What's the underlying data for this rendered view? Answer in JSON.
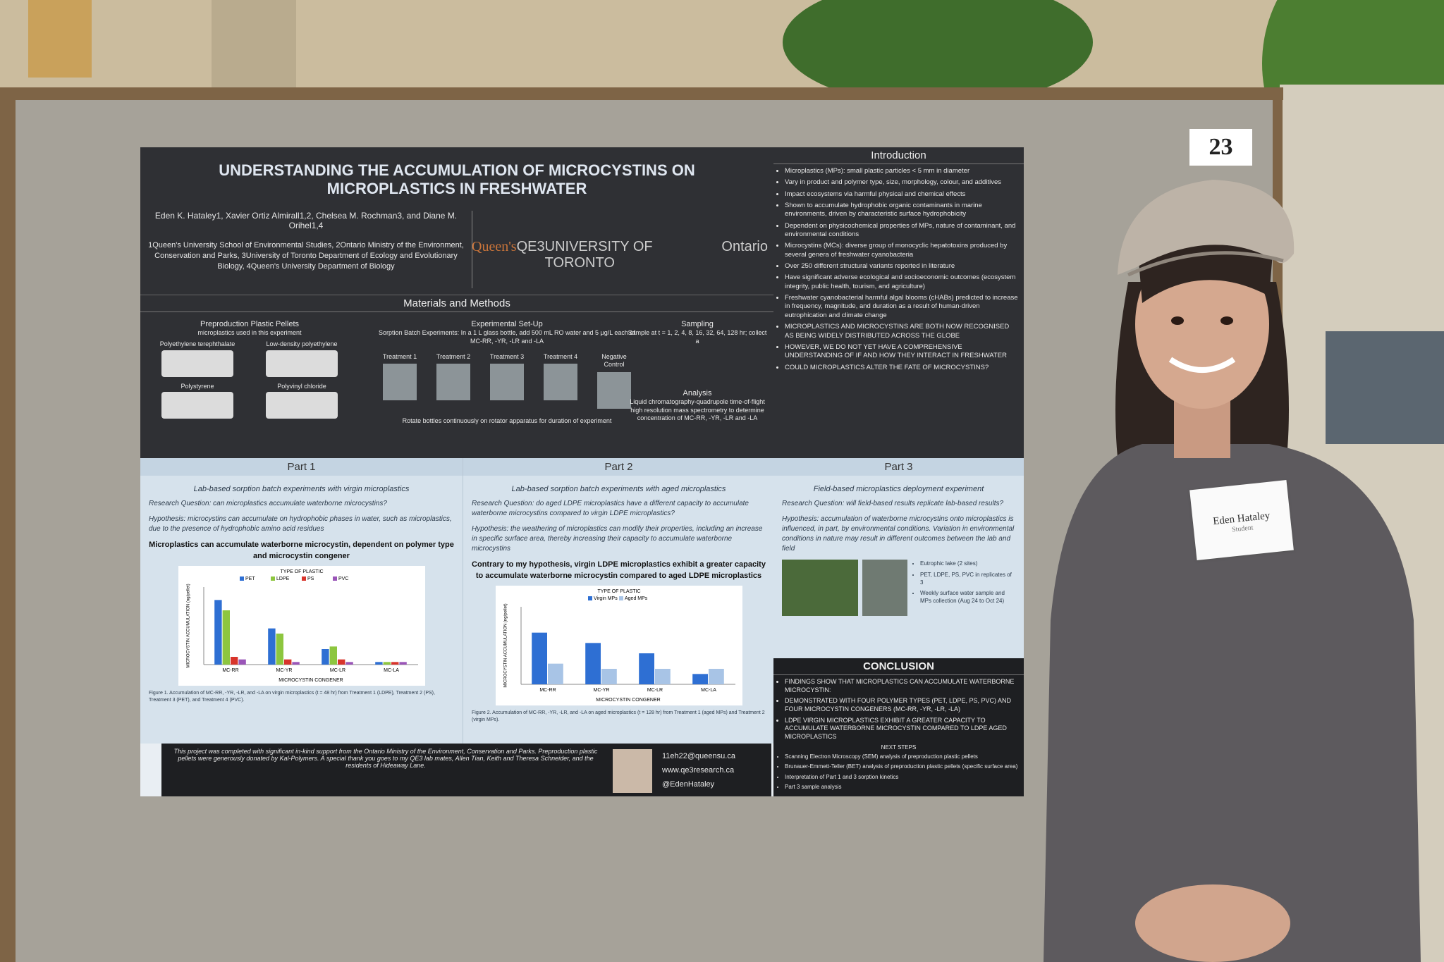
{
  "sign_number": "23",
  "poster": {
    "title_line1": "UNDERSTANDING THE ACCUMULATION OF MICROCYSTINS ON",
    "title_line2": "MICROPLASTICS IN FRESHWATER",
    "authors": "Eden K. Hataley1, Xavier Ortiz Almirall1,2, Chelsea M. Rochman3, and Diane M. Orihel1,4",
    "affiliations": "1Queen's University School of Environmental Studies, 2Ontario Ministry of the Environment, Conservation and Parks, 3University of Toronto Department of Ecology and Evolutionary Biology, 4Queen's University Department of Biology",
    "logos": [
      "Queen's",
      "QE3",
      "UNIVERSITY OF TORONTO",
      "Ontario"
    ],
    "introduction": {
      "heading": "Introduction",
      "bullets": [
        "Microplastics (MPs): small plastic particles < 5 mm in diameter",
        "Vary in product and polymer type, size, morphology, colour, and additives",
        "Impact ecosystems via harmful physical and chemical effects",
        "Shown to accumulate hydrophobic organic contaminants in marine environments, driven by characteristic surface hydrophobicity",
        "Dependent on physicochemical properties of MPs, nature of contaminant, and environmental conditions",
        "Microcystins (MCs): diverse group of monocyclic hepatotoxins produced by several genera of freshwater cyanobacteria",
        "Over 250 different structural variants reported in literature",
        "Have significant adverse ecological and socioeconomic outcomes (ecosystem integrity, public health, tourism, and agriculture)",
        "Freshwater cyanobacterial harmful algal blooms (cHABs) predicted to increase in frequency, magnitude, and duration as a result of human-driven eutrophication and climate change",
        "MICROPLASTICS AND MICROCYSTINS ARE BOTH NOW RECOGNISED AS BEING WIDELY DISTRIBUTED ACROSS THE GLOBE",
        "HOWEVER, WE DO NOT YET HAVE A COMPREHENSIVE UNDERSTANDING OF IF AND HOW THEY INTERACT IN FRESHWATER",
        "COULD MICROPLASTICS ALTER THE FATE OF MICROCYSTINS?"
      ]
    },
    "methods": {
      "heading": "Materials and Methods",
      "pellets_heading": "Preproduction Plastic Pellets",
      "pellets_sub": "microplastics used in this experiment",
      "pellet_types": [
        "Polyethylene terephthalate",
        "Low-density polyethylene",
        "Polystyrene",
        "Polyvinyl chloride"
      ],
      "setup_heading": "Experimental Set-Up",
      "setup_text": "Sorption Batch Experiments: In a 1 L glass bottle, add 500 mL RO water and 5 µg/L each of MC-RR, -YR, -LR and -LA",
      "treatments": [
        "Treatment 1",
        "Treatment 2",
        "Treatment 3",
        "Treatment 4",
        "Negative Control"
      ],
      "rotate_text": "Rotate bottles continuously on rotator apparatus for duration of experiment",
      "sampling_heading": "Sampling",
      "sampling_text": "Sample at t = 1, 2, 4, 8, 16, 32, 64, 128 hr; collect a",
      "analysis_heading": "Analysis",
      "analysis_text": "Liquid chromatography-quadrupole time-of-flight high resolution mass spectrometry to determine concentration of MC-RR, -YR, -LR and -LA"
    },
    "parts": [
      {
        "heading": "Part 1",
        "subtitle": "Lab-based sorption batch experiments with virgin microplastics",
        "question": "Research Question: can microplastics accumulate waterborne microcystins?",
        "hypothesis": "Hypothesis: microcystins can accumulate on hydrophobic phases in water, such as microplastics, due to the presence of hydrophobic amino acid residues",
        "finding": "Microplastics can accumulate waterborne microcystin, dependent on polymer type and microcystin congener",
        "caption": "Figure 1. Accumulation of MC-RR, -YR, -LR, and -LA on virgin microplastics (t = 48 hr) from Treatment 1 (LDPE), Treatment 2 (PS), Treatment 3 (PET), and Treatment 4 (PVC).",
        "chart": {
          "type": "bar",
          "legend_title": "TYPE OF PLASTIC",
          "y_label": "MICROCYSTIN ACCUMULATION (ng/pellet)",
          "x_label": "MICROCYSTIN CONGENER",
          "categories": [
            "MC-RR",
            "MC-YR",
            "MC-LR",
            "MC-LA"
          ],
          "ylim": [
            0,
            0.03
          ],
          "series": [
            {
              "name": "PET",
              "color": "#2e6fd3",
              "values": [
                0.025,
                0.014,
                0.006,
                0.001
              ]
            },
            {
              "name": "LDPE",
              "color": "#8dc63f",
              "values": [
                0.021,
                0.012,
                0.007,
                0.001
              ]
            },
            {
              "name": "PS",
              "color": "#d8342b",
              "values": [
                0.003,
                0.002,
                0.002,
                0.001
              ]
            },
            {
              "name": "PVC",
              "color": "#9a55b8",
              "values": [
                0.002,
                0.001,
                0.001,
                0.001
              ]
            }
          ]
        }
      },
      {
        "heading": "Part 2",
        "subtitle": "Lab-based sorption batch experiments with aged microplastics",
        "question": "Research Question: do aged LDPE microplastics have a different capacity to accumulate waterborne microcystins compared to virgin LDPE microplastics?",
        "hypothesis": "Hypothesis: the weathering of microplastics can modify their properties, including an increase in specific surface area, thereby increasing their capacity to accumulate waterborne microcystins",
        "finding": "Contrary to my hypothesis, virgin LDPE microplastics exhibit a greater capacity to accumulate waterborne microcystin compared to aged LDPE microplastics",
        "caption": "Figure 2. Accumulation of MC-RR, -YR, -LR, and -LA on aged microplastics (t = 128 hr) from Treatment 1 (aged MPs) and Treatment 2 (virgin MPs).",
        "chart": {
          "type": "bar",
          "legend_title": "TYPE OF PLASTIC",
          "y_label": "MICROCYSTIN ACCUMULATION (ng/pellet)",
          "x_label": "MICROCYSTIN CONGENER",
          "categories": [
            "MC-RR",
            "MC-YR",
            "MC-LR",
            "MC-LA"
          ],
          "ylim": [
            0,
            0.015
          ],
          "series": [
            {
              "name": "Virgin MPs",
              "color": "#2e6fd3",
              "values": [
                0.01,
                0.008,
                0.006,
                0.002
              ]
            },
            {
              "name": "Aged MPs",
              "color": "#a8c4e6",
              "values": [
                0.004,
                0.003,
                0.003,
                0.003
              ]
            }
          ]
        }
      },
      {
        "heading": "Part 3",
        "subtitle": "Field-based microplastics deployment experiment",
        "question": "Research Question: will field-based results replicate lab-based results?",
        "hypothesis": "Hypothesis: accumulation of waterborne microcystins onto microplastics is influenced, in part, by environmental conditions. Variation in environmental conditions in nature may result in different outcomes between the lab and field",
        "bullets": [
          "Eutrophic lake (2 sites)",
          "PET, LDPE, PS, PVC in replicates of 3",
          "Weekly surface water sample and MPs collection (Aug 24 to Oct 24)"
        ]
      }
    ],
    "conclusion": {
      "heading": "CONCLUSION",
      "bullets": [
        "FINDINGS SHOW THAT MICROPLASTICS CAN ACCUMULATE WATERBORNE MICROCYSTIN:",
        "DEMONSTRATED WITH FOUR POLYMER TYPES (PET, LDPE, PS, PVC) AND FOUR MICROCYSTIN CONGENERS (MC-RR, -YR, -LR, -LA)",
        "LDPE VIRGIN MICROPLASTICS EXHIBIT A GREATER CAPACITY TO ACCUMULATE WATERBORNE MICROCYSTIN COMPARED TO LDPE AGED MICROPLASTICS"
      ],
      "next_heading": "NEXT STEPS",
      "next_steps": [
        "Scanning Electron Microscopy (SEM) analysis of preproduction plastic pellets",
        "Brunauer-Emmett-Teller (BET) analysis of preproduction plastic pellets (specific surface area)",
        "Interpretation of Part 1 and 3 sorption kinetics",
        "Part 3 sample analysis"
      ]
    },
    "footer": {
      "acknowledgement": "This project was completed with significant in-kind support from the Ontario Ministry of the Environment, Conservation and Parks. Preproduction plastic pellets were generously donated by Kal-Polymers. A special thank you goes to my QE3 lab mates, Allen Tian, Keith and Theresa Schneider, and the residents of Hideaway Lane.",
      "email": "11eh22@queensu.ca",
      "website": "www.qe3research.ca",
      "twitter": "@EdenHataley"
    }
  },
  "name_tag": {
    "name": "Eden Hataley",
    "role": "Student"
  }
}
